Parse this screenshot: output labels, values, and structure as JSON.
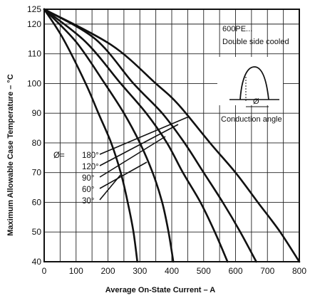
{
  "chart_data": {
    "type": "line",
    "title": "",
    "xlabel": "Average On-State Current – A",
    "ylabel": "Maximum Allowable Case Temperature – °C",
    "xlim": [
      0,
      800
    ],
    "ylim": [
      40,
      125
    ],
    "x_ticks": [
      "0",
      "100",
      "200",
      "300",
      "400",
      "500",
      "600",
      "700",
      "800"
    ],
    "y_ticks": [
      "40",
      "50",
      "60",
      "70",
      "80",
      "90",
      "100",
      "110",
      "120",
      "125"
    ],
    "grid": true,
    "annotations": {
      "device_line1": "600PE...",
      "device_line2": "Double side cooled",
      "waveform_caption": "Conduction angle",
      "phi_symbol": "Ø",
      "angle_prefix": "Ø="
    },
    "series": [
      {
        "name": "30°",
        "points": [
          [
            0,
            125
          ],
          [
            60,
            115
          ],
          [
            130,
            100
          ],
          [
            170,
            90
          ],
          [
            210,
            80
          ],
          [
            240,
            70
          ],
          [
            262,
            60
          ],
          [
            280,
            50
          ],
          [
            292,
            40
          ]
        ]
      },
      {
        "name": "60°",
        "points": [
          [
            0,
            125
          ],
          [
            100,
            114
          ],
          [
            190,
            100
          ],
          [
            250,
            90
          ],
          [
            300,
            80
          ],
          [
            340,
            70
          ],
          [
            370,
            60
          ],
          [
            390,
            50
          ],
          [
            405,
            40
          ]
        ]
      },
      {
        "name": "90°",
        "points": [
          [
            0,
            125
          ],
          [
            130,
            114
          ],
          [
            240,
            100
          ],
          [
            320,
            90
          ],
          [
            385,
            80
          ],
          [
            435,
            70
          ],
          [
            490,
            60
          ],
          [
            535,
            50
          ],
          [
            575,
            40
          ]
        ]
      },
      {
        "name": "120°",
        "points": [
          [
            0,
            125
          ],
          [
            160,
            115
          ],
          [
            280,
            100
          ],
          [
            370,
            90
          ],
          [
            440,
            80
          ],
          [
            500,
            70
          ],
          [
            560,
            60
          ],
          [
            615,
            50
          ],
          [
            665,
            40
          ]
        ]
      },
      {
        "name": "180°",
        "points": [
          [
            0,
            125
          ],
          [
            210,
            113
          ],
          [
            350,
            100
          ],
          [
            420,
            93
          ],
          [
            520,
            80
          ],
          [
            600,
            70
          ],
          [
            670,
            60
          ],
          [
            740,
            50
          ],
          [
            800,
            40
          ]
        ]
      }
    ]
  }
}
